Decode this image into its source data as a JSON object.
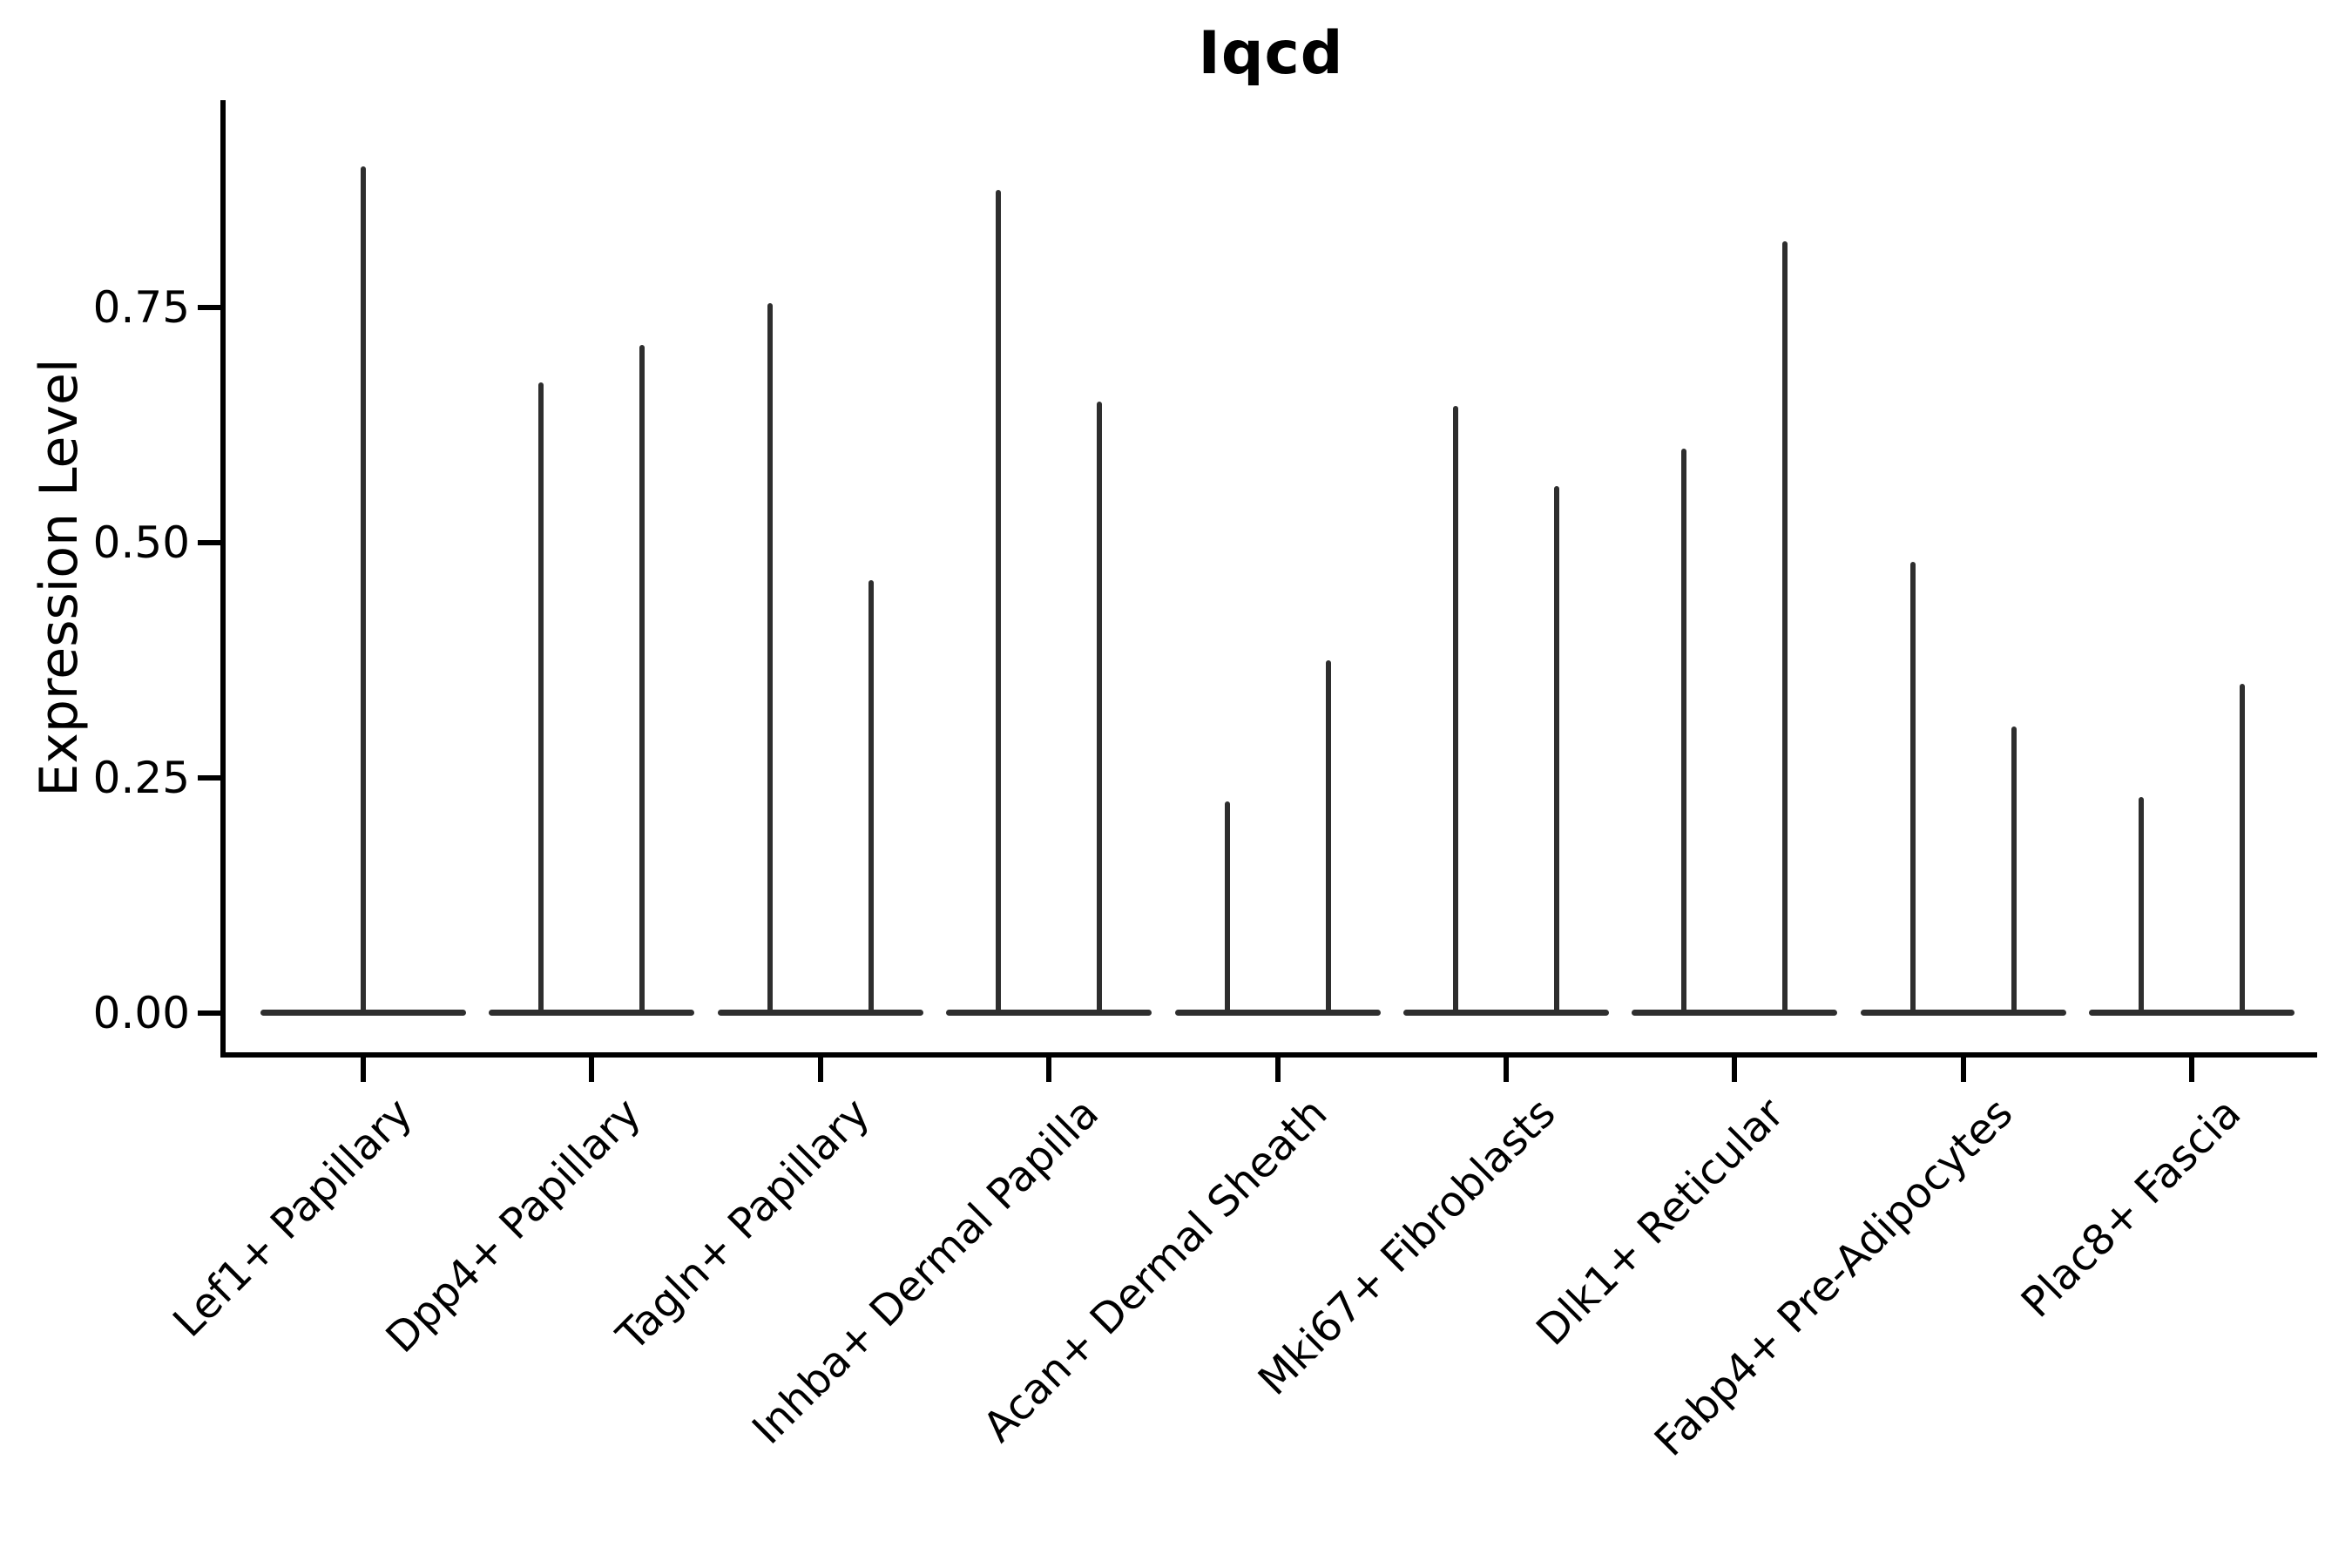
{
  "chart_data": {
    "type": "violin",
    "title": "Iqcd",
    "xlabel": "",
    "ylabel": "Expression Level",
    "ylim": [
      0,
      0.97
    ],
    "grid": false,
    "legend": "none",
    "yticks": [
      {
        "label": "0.00",
        "value": 0.0
      },
      {
        "label": "0.25",
        "value": 0.25
      },
      {
        "label": "0.50",
        "value": 0.5
      },
      {
        "label": "0.75",
        "value": 0.75
      }
    ],
    "description": "Violin plot of Iqcd expression; expression is near zero in all clusters so each violin collapses to a flat base at 0 with a thin spike up to the maximum expressing cell. Categories 2-9 contain two side-by-side violins (split groups); category 1 has a single centered violin.",
    "categories": [
      {
        "label": "Lef1+ Papillary",
        "violin_max_values": [
          0.9
        ]
      },
      {
        "label": "Dpp4+ Papillary",
        "violin_max_values": [
          0.67,
          0.71
        ]
      },
      {
        "label": "Tagln+ Papillary",
        "violin_max_values": [
          0.755,
          0.46
        ]
      },
      {
        "label": "Inhba+ Dermal Papilla",
        "violin_max_values": [
          0.875,
          0.65
        ]
      },
      {
        "label": "Acan+ Dermal Sheath",
        "violin_max_values": [
          0.225,
          0.375
        ]
      },
      {
        "label": "Mki67+ Fibroblasts",
        "violin_max_values": [
          0.645,
          0.56
        ]
      },
      {
        "label": "Dlk1+ Reticular",
        "violin_max_values": [
          0.6,
          0.82
        ]
      },
      {
        "label": "Fabp4+ Pre-Adipocytes",
        "violin_max_values": [
          0.48,
          0.305
        ]
      },
      {
        "label": "Plac8+ Fascia",
        "violin_max_values": [
          0.23,
          0.35
        ]
      }
    ],
    "colors": {
      "violin_stroke": "#2e2e2e",
      "axis": "#000000",
      "text": "#000000",
      "background": "#ffffff"
    }
  }
}
